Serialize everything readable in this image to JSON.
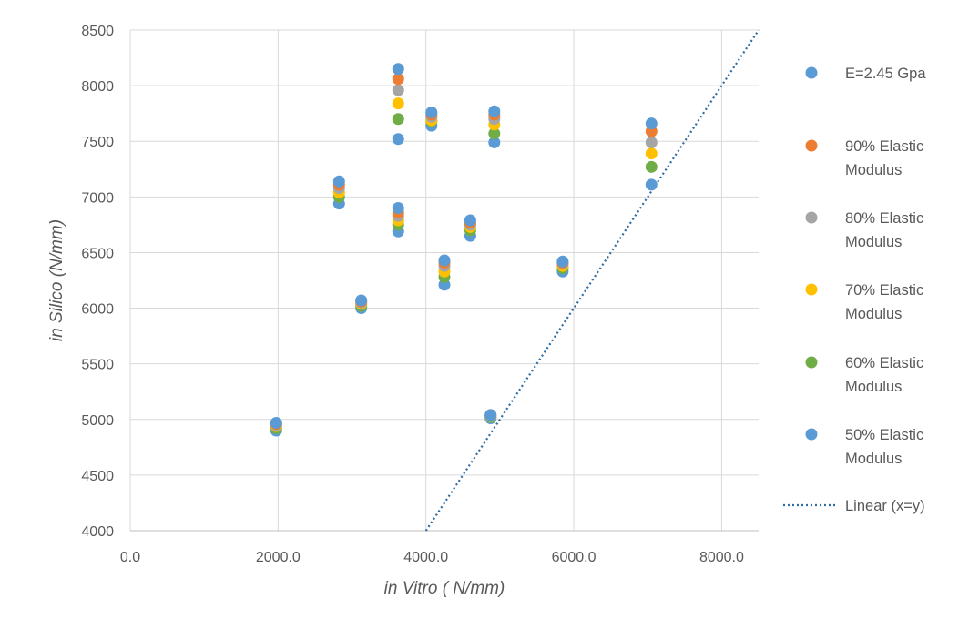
{
  "chart_data": {
    "type": "scatter",
    "xlabel": "in Vitro ( N/mm)",
    "ylabel": "in Silico (N/mm)",
    "xlim": [
      0,
      8500
    ],
    "ylim": [
      4000,
      8500
    ],
    "x_ticks": [
      0,
      2000,
      4000,
      6000,
      8000
    ],
    "x_tick_labels": [
      "0.0",
      "2000.0",
      "4000.0",
      "6000.0",
      "8000.0"
    ],
    "y_ticks": [
      4000,
      4500,
      5000,
      5500,
      6000,
      6500,
      7000,
      7500,
      8000,
      8500
    ],
    "y_tick_labels": [
      "4000",
      "4500",
      "5000",
      "5500",
      "6000",
      "6500",
      "7000",
      "7500",
      "8000",
      "8500"
    ],
    "grid": true,
    "legend_position": "right",
    "x": [
      1975,
      2825,
      3125,
      3625,
      3625,
      4075,
      4250,
      4600,
      4875,
      4925,
      5850,
      7050
    ],
    "series": [
      {
        "name": "E=2.45 Gpa",
        "color": "#5B9BD5",
        "y": [
          4970,
          7140,
          6070,
          8150,
          6900,
          7760,
          6430,
          6790,
          5040,
          7770,
          6420,
          7660
        ]
      },
      {
        "name": "90% Elastic Modulus",
        "color": "#ED7D31",
        "y": [
          4960,
          7110,
          6060,
          8060,
          6860,
          7740,
          6410,
          6770,
          5040,
          7740,
          6410,
          7590
        ]
      },
      {
        "name": "80% Elastic Modulus",
        "color": "#A5A5A5",
        "y": [
          4950,
          7080,
          6050,
          7960,
          6830,
          7720,
          6380,
          6750,
          5030,
          7700,
          6400,
          7490
        ]
      },
      {
        "name": "70% Elastic Modulus",
        "color": "#FFC000",
        "y": [
          4940,
          7040,
          6040,
          7840,
          6790,
          7690,
          6330,
          6730,
          5030,
          7650,
          6380,
          7390
        ]
      },
      {
        "name": "60% Elastic Modulus",
        "color": "#70AD47",
        "y": [
          4920,
          7000,
          6020,
          7700,
          6750,
          7680,
          6280,
          6700,
          5020,
          7570,
          6360,
          7270
        ]
      },
      {
        "name": "50% Elastic Modulus",
        "color": "#5B9BD5",
        "y": [
          4900,
          6940,
          6000,
          7520,
          6690,
          7640,
          6210,
          6650,
          5010,
          7490,
          6330,
          7110
        ]
      }
    ],
    "trendline": {
      "name": "Linear (x=y)",
      "color": "#2E6DA4",
      "style": "dotted",
      "x": [
        4000,
        8500
      ],
      "y": [
        4000,
        8500
      ]
    }
  }
}
